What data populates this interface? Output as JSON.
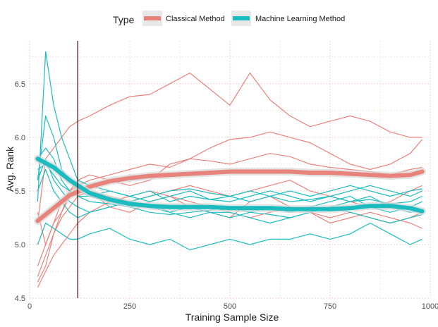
{
  "chart_data": {
    "type": "line",
    "xlabel": "Training Sample Size",
    "ylabel": "Avg. Rank",
    "xlim": [
      0,
      1000
    ],
    "ylim": [
      4.5,
      6.9
    ],
    "x_ticks": [
      0,
      250,
      500,
      750,
      1000
    ],
    "x_tick_labels": [
      "0",
      "250",
      "500",
      "750",
      "1000"
    ],
    "y_ticks": [
      4.5,
      5.0,
      5.5,
      6.0,
      6.5
    ],
    "y_tick_labels": [
      "4.5",
      "5.0",
      "5.5",
      "6.0",
      "6.5"
    ],
    "grid": true,
    "legend": {
      "title": "Type",
      "position": "top",
      "entries": [
        "Classical Method",
        "Machine Learning Method"
      ]
    },
    "vline_x": 120,
    "colors": {
      "classical": "#E8837C",
      "ml": "#1BBCBF",
      "vline": "#3d0a0a",
      "grid": "#f0c8c8"
    },
    "x": [
      20,
      40,
      60,
      80,
      100,
      120,
      150,
      200,
      250,
      300,
      350,
      400,
      450,
      500,
      550,
      600,
      650,
      700,
      750,
      800,
      850,
      900,
      950,
      980
    ],
    "series": [
      {
        "name": "Classical Method",
        "group": "classical",
        "values": [
          5.2,
          5.8,
          5.9,
          6.0,
          6.1,
          6.15,
          6.2,
          6.3,
          6.38,
          6.4,
          6.5,
          6.6,
          6.45,
          6.3,
          6.6,
          6.35,
          6.2,
          6.1,
          6.15,
          6.2,
          6.15,
          6.05,
          6.0,
          6.0
        ]
      },
      {
        "name": "Classical Method",
        "group": "classical",
        "values": [
          5.3,
          5.0,
          5.2,
          5.3,
          5.45,
          5.55,
          5.6,
          5.65,
          5.7,
          5.75,
          5.72,
          5.8,
          5.9,
          5.98,
          6.0,
          6.05,
          6.0,
          5.95,
          5.85,
          5.75,
          5.7,
          5.75,
          5.85,
          5.98
        ]
      },
      {
        "name": "Classical Method",
        "group": "classical",
        "values": [
          4.65,
          4.8,
          5.1,
          5.3,
          5.5,
          5.6,
          5.65,
          5.6,
          5.55,
          5.6,
          5.75,
          5.8,
          5.78,
          5.75,
          5.8,
          5.85,
          5.82,
          5.75,
          5.72,
          5.7,
          5.68,
          5.65,
          5.7,
          5.72
        ]
      },
      {
        "name": "Classical Method",
        "group": "classical",
        "values": [
          4.7,
          4.9,
          5.1,
          5.25,
          5.35,
          5.45,
          5.5,
          5.45,
          5.4,
          5.45,
          5.5,
          5.55,
          5.5,
          5.45,
          5.5,
          5.55,
          5.6,
          5.5,
          5.45,
          5.4,
          5.35,
          5.4,
          5.5,
          5.55
        ]
      },
      {
        "name": "Classical Method",
        "group": "classical",
        "values": [
          4.6,
          4.75,
          4.9,
          5.0,
          5.1,
          5.2,
          5.3,
          5.4,
          5.45,
          5.5,
          5.45,
          5.4,
          5.35,
          5.3,
          5.25,
          5.3,
          5.35,
          5.3,
          5.25,
          5.3,
          5.25,
          5.2,
          5.25,
          5.3
        ]
      },
      {
        "name": "Classical Method",
        "group": "classical",
        "values": [
          4.8,
          5.0,
          5.2,
          5.4,
          5.5,
          5.55,
          5.5,
          5.35,
          5.3,
          5.4,
          5.45,
          5.35,
          5.3,
          5.25,
          5.4,
          5.45,
          5.35,
          5.3,
          5.2,
          5.25,
          5.3,
          5.25,
          5.2,
          5.15
        ]
      },
      {
        "name": "Machine Learning Method",
        "group": "ml",
        "values": [
          5.4,
          6.8,
          6.3,
          6.0,
          5.8,
          5.6,
          5.55,
          5.5,
          5.45,
          5.5,
          5.4,
          5.45,
          5.42,
          5.4,
          5.45,
          5.5,
          5.45,
          5.4,
          5.45,
          5.5,
          5.55,
          5.5,
          5.45,
          5.5
        ]
      },
      {
        "name": "Machine Learning Method",
        "group": "ml",
        "values": [
          5.6,
          6.2,
          6.0,
          5.7,
          5.6,
          5.5,
          5.45,
          5.4,
          5.35,
          5.38,
          5.3,
          5.35,
          5.3,
          5.25,
          5.3,
          5.35,
          5.3,
          5.35,
          5.4,
          5.45,
          5.35,
          5.3,
          5.35,
          5.4
        ]
      },
      {
        "name": "Machine Learning Method",
        "group": "ml",
        "values": [
          5.8,
          5.9,
          5.8,
          5.6,
          5.5,
          5.45,
          5.4,
          5.38,
          5.35,
          5.3,
          5.28,
          5.3,
          5.32,
          5.35,
          5.3,
          5.28,
          5.25,
          5.3,
          5.35,
          5.4,
          5.45,
          5.35,
          5.3,
          5.32
        ]
      },
      {
        "name": "Machine Learning Method",
        "group": "ml",
        "values": [
          5.7,
          5.75,
          5.65,
          5.55,
          5.5,
          5.45,
          5.45,
          5.5,
          5.45,
          5.4,
          5.45,
          5.5,
          5.42,
          5.45,
          5.4,
          5.45,
          5.5,
          5.45,
          5.5,
          5.55,
          5.5,
          5.45,
          5.5,
          5.52
        ]
      },
      {
        "name": "Machine Learning Method",
        "group": "ml",
        "values": [
          5.6,
          5.8,
          5.6,
          5.5,
          5.4,
          5.35,
          5.3,
          5.35,
          5.4,
          5.35,
          5.3,
          5.25,
          5.3,
          5.3,
          5.25,
          5.2,
          5.25,
          5.3,
          5.35,
          5.3,
          5.25,
          5.2,
          5.25,
          5.28
        ]
      },
      {
        "name": "Machine Learning Method",
        "group": "ml",
        "values": [
          5.5,
          5.7,
          5.5,
          5.4,
          5.3,
          5.25,
          5.3,
          5.35,
          5.4,
          5.45,
          5.5,
          5.52,
          5.48,
          5.45,
          5.5,
          5.45,
          5.4,
          5.42,
          5.45,
          5.4,
          5.42,
          5.38,
          5.4,
          5.45
        ]
      },
      {
        "name": "Machine Learning Method",
        "group": "ml",
        "values": [
          5.0,
          5.2,
          5.15,
          5.1,
          5.05,
          5.05,
          5.1,
          5.15,
          5.05,
          5.0,
          5.05,
          4.95,
          5.0,
          5.05,
          5.0,
          5.05,
          5.05,
          5.1,
          5.05,
          5.1,
          5.2,
          5.1,
          5.0,
          5.05
        ]
      }
    ],
    "trend_x": [
      20,
      60,
      100,
      150,
      200,
      250,
      300,
      350,
      400,
      450,
      500,
      550,
      600,
      650,
      700,
      750,
      800,
      850,
      900,
      950,
      980
    ],
    "trends": [
      {
        "name": "Classical Method",
        "group": "classical",
        "values": [
          5.22,
          5.34,
          5.46,
          5.54,
          5.59,
          5.62,
          5.64,
          5.65,
          5.66,
          5.67,
          5.68,
          5.68,
          5.68,
          5.68,
          5.67,
          5.67,
          5.66,
          5.65,
          5.64,
          5.65,
          5.68
        ]
      },
      {
        "name": "Machine Learning Method",
        "group": "ml",
        "values": [
          5.8,
          5.72,
          5.6,
          5.48,
          5.42,
          5.38,
          5.36,
          5.35,
          5.35,
          5.35,
          5.34,
          5.34,
          5.34,
          5.33,
          5.33,
          5.33,
          5.34,
          5.36,
          5.36,
          5.34,
          5.31
        ]
      }
    ]
  }
}
